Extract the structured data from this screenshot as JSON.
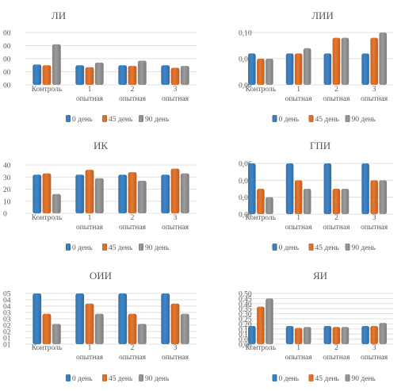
{
  "colors": {
    "s0": "#3e86c9",
    "s1": "#e8772e",
    "s2": "#9b9b9b",
    "grid": "#d9d9d9",
    "text": "#595959"
  },
  "chart_data": [
    {
      "type": "bar",
      "title": "ЛИ",
      "categories": [
        "Контроль",
        "1\nопытная",
        "2\nопытная",
        "3\nопытная"
      ],
      "yticks": [
        "00",
        "00",
        "00",
        "00",
        "00"
      ],
      "ylim": [
        0,
        4
      ],
      "grid": true,
      "legend": "bottom",
      "series": [
        {
          "name": "0 день",
          "values": [
            1.55,
            1.5,
            1.5,
            1.5
          ]
        },
        {
          "name": "45 день",
          "values": [
            1.5,
            1.35,
            1.45,
            1.3
          ]
        },
        {
          "name": "90 день",
          "values": [
            3.1,
            1.7,
            1.85,
            1.45
          ]
        }
      ]
    },
    {
      "type": "bar",
      "title": "ЛИИ",
      "categories": [
        "Контроль",
        "1\nопытная",
        "2\nопытная",
        "3\nопытная"
      ],
      "yticks": [
        "0,00",
        "0,05",
        "0,10"
      ],
      "ylim": [
        0,
        0.1
      ],
      "grid": true,
      "legend": "bottom",
      "series": [
        {
          "name": "0 день",
          "values": [
            0.06,
            0.06,
            0.06,
            0.06
          ]
        },
        {
          "name": "45 день",
          "values": [
            0.05,
            0.06,
            0.09,
            0.09
          ]
        },
        {
          "name": "90 день",
          "values": [
            0.05,
            0.07,
            0.09,
            0.1
          ]
        }
      ]
    },
    {
      "type": "bar",
      "title": "ИК",
      "categories": [
        "Контроль",
        "1\nопытная",
        "2\nопытная",
        "3\nопытная"
      ],
      "yticks": [
        "0",
        "10",
        "20",
        "30",
        "40"
      ],
      "ylim": [
        0,
        40
      ],
      "grid": true,
      "legend": "bottom",
      "series": [
        {
          "name": "0 день",
          "values": [
            32,
            32,
            32,
            32
          ]
        },
        {
          "name": "45 день",
          "values": [
            33,
            36,
            34,
            37
          ]
        },
        {
          "name": "90 день",
          "values": [
            16,
            29,
            27,
            33
          ]
        }
      ]
    },
    {
      "type": "bar",
      "title": "ГПИ",
      "categories": [
        "Контроль",
        "1\nопытная",
        "2\nопытная",
        "3\nопытная"
      ],
      "yticks": [
        "0,00",
        "0,02",
        "0,04",
        "0,06"
      ],
      "ylim": [
        0,
        0.06
      ],
      "grid": true,
      "legend": "bottom",
      "series": [
        {
          "name": "0 день",
          "values": [
            0.06,
            0.06,
            0.06,
            0.06
          ]
        },
        {
          "name": "45 день",
          "values": [
            0.03,
            0.04,
            0.03,
            0.04
          ]
        },
        {
          "name": "90 день",
          "values": [
            0.02,
            0.03,
            0.03,
            0.04
          ]
        }
      ]
    },
    {
      "type": "bar",
      "title": "ОИИ",
      "categories": [
        "Контроль",
        "1\nопытная",
        "2\nопытная",
        "3\nопытная"
      ],
      "yticks": [
        "01",
        "01",
        "02",
        "02",
        "03",
        "03",
        "04",
        "04",
        "05"
      ],
      "ylim": [
        0,
        5
      ],
      "grid": true,
      "legend": "bottom",
      "series": [
        {
          "name": "0 день",
          "values": [
            5,
            5,
            5,
            5
          ]
        },
        {
          "name": "45 день",
          "values": [
            3,
            4,
            3,
            4
          ]
        },
        {
          "name": "90 день",
          "values": [
            2,
            3,
            2,
            3
          ]
        }
      ]
    },
    {
      "type": "bar",
      "title": "ЯИ",
      "categories": [
        "Контроль",
        "1\nопытная",
        "2\nопытная",
        "3\nопытная"
      ],
      "yticks": [
        "0,00",
        "0,05",
        "0,10",
        "0,15",
        "0,20",
        "0,25",
        "0,30",
        "0,35",
        "0,40",
        "0,45",
        "0,50"
      ],
      "ylim": [
        0,
        0.5
      ],
      "grid": true,
      "legend": "bottom",
      "series": [
        {
          "name": "0 день",
          "values": [
            0.18,
            0.18,
            0.18,
            0.18
          ]
        },
        {
          "name": "45 день",
          "values": [
            0.37,
            0.16,
            0.17,
            0.18
          ]
        },
        {
          "name": "90 день",
          "values": [
            0.45,
            0.17,
            0.17,
            0.21
          ]
        }
      ]
    }
  ]
}
